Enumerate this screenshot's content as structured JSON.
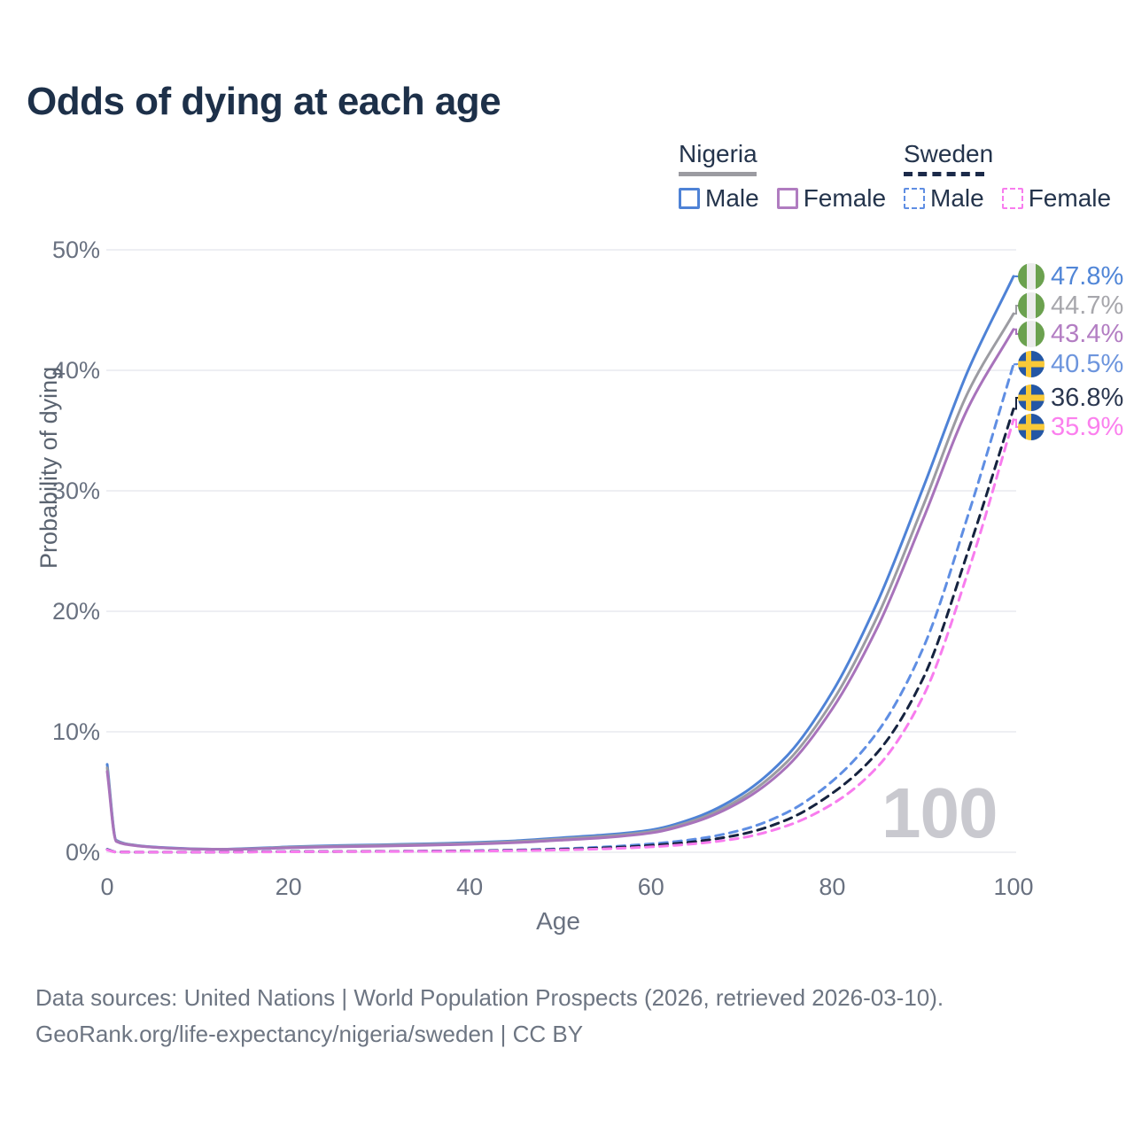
{
  "title": "Odds of dying at each age",
  "watermark": "100",
  "legend": {
    "groups": [
      {
        "country": "Nigeria",
        "line_style": "solid",
        "underline_color": "#9b9ba1",
        "items": [
          {
            "label": "Male",
            "color": "#4e82d6"
          },
          {
            "label": "Female",
            "color": "#b07cc0"
          }
        ]
      },
      {
        "country": "Sweden",
        "line_style": "dashed",
        "underline_color": "#1b2a49",
        "items": [
          {
            "label": "Male",
            "color": "#5f8ee3"
          },
          {
            "label": "Female",
            "color": "#f87cee"
          }
        ]
      }
    ]
  },
  "y_axis": {
    "title": "Probability of dying"
  },
  "x_axis": {
    "title": "Age"
  },
  "end_labels": [
    {
      "value": "47.8%",
      "flag": "nigeria",
      "color": "#5186d7"
    },
    {
      "value": "44.7%",
      "flag": "nigeria",
      "color": "#a7a7ac"
    },
    {
      "value": "43.4%",
      "flag": "nigeria",
      "color": "#b37ec3"
    },
    {
      "value": "40.5%",
      "flag": "sweden",
      "color": "#6d95dd"
    },
    {
      "value": "36.8%",
      "flag": "sweden",
      "color": "#2b3750"
    },
    {
      "value": "35.9%",
      "flag": "sweden",
      "color": "#fb80ee"
    }
  ],
  "footer": {
    "line1": "Data sources: United Nations | World Population Prospects (2026, retrieved 2026-03-10).",
    "line2": "GeoRank.org/life-expectancy/nigeria/sweden | CC BY"
  },
  "chart_data": {
    "type": "line",
    "title": "Odds of dying at each age",
    "xlabel": "Age",
    "ylabel": "Probability of dying",
    "xlim": [
      0,
      100
    ],
    "ylim_pct": [
      0,
      50
    ],
    "grid": "horizontal",
    "legend_position": "top-right",
    "xticks": [
      {
        "v": 0,
        "label": "0"
      },
      {
        "v": 20,
        "label": "20"
      },
      {
        "v": 40,
        "label": "40"
      },
      {
        "v": 60,
        "label": "60"
      },
      {
        "v": 80,
        "label": "80"
      },
      {
        "v": 100,
        "label": "100"
      }
    ],
    "yticks": [
      {
        "v": 0,
        "label": "0%"
      },
      {
        "v": 10,
        "label": "10%"
      },
      {
        "v": 20,
        "label": "20%"
      },
      {
        "v": 30,
        "label": "30%"
      },
      {
        "v": 40,
        "label": "40%"
      },
      {
        "v": 50,
        "label": "50%"
      }
    ],
    "series": [
      {
        "name": "Nigeria Male",
        "color": "#4e82d6",
        "dash": "solid",
        "end_label": "47.8%",
        "points": [
          [
            0,
            7.3
          ],
          [
            1,
            1.0
          ],
          [
            3,
            0.6
          ],
          [
            5,
            0.45
          ],
          [
            8,
            0.33
          ],
          [
            10,
            0.28
          ],
          [
            13,
            0.26
          ],
          [
            15,
            0.3
          ],
          [
            18,
            0.38
          ],
          [
            20,
            0.45
          ],
          [
            25,
            0.55
          ],
          [
            30,
            0.62
          ],
          [
            35,
            0.7
          ],
          [
            40,
            0.8
          ],
          [
            45,
            0.95
          ],
          [
            50,
            1.2
          ],
          [
            55,
            1.45
          ],
          [
            60,
            1.85
          ],
          [
            65,
            2.9
          ],
          [
            70,
            4.8
          ],
          [
            75,
            8.0
          ],
          [
            80,
            13.3
          ],
          [
            85,
            20.8
          ],
          [
            90,
            30.2
          ],
          [
            95,
            40.0
          ],
          [
            100,
            47.8
          ]
        ]
      },
      {
        "name": "Nigeria",
        "color": "#9c9ca2",
        "dash": "solid",
        "end_label": "44.7%",
        "points": [
          [
            0,
            7.0
          ],
          [
            1,
            0.95
          ],
          [
            3,
            0.58
          ],
          [
            5,
            0.43
          ],
          [
            8,
            0.31
          ],
          [
            10,
            0.27
          ],
          [
            13,
            0.25
          ],
          [
            15,
            0.28
          ],
          [
            18,
            0.35
          ],
          [
            20,
            0.41
          ],
          [
            25,
            0.5
          ],
          [
            30,
            0.57
          ],
          [
            35,
            0.64
          ],
          [
            40,
            0.73
          ],
          [
            45,
            0.88
          ],
          [
            50,
            1.1
          ],
          [
            55,
            1.33
          ],
          [
            60,
            1.72
          ],
          [
            65,
            2.7
          ],
          [
            70,
            4.5
          ],
          [
            75,
            7.5
          ],
          [
            80,
            12.5
          ],
          [
            85,
            19.6
          ],
          [
            90,
            28.7
          ],
          [
            95,
            38.2
          ],
          [
            100,
            44.7
          ]
        ]
      },
      {
        "name": "Nigeria Female",
        "color": "#a873bb",
        "dash": "solid",
        "end_label": "43.4%",
        "points": [
          [
            0,
            6.7
          ],
          [
            1,
            0.9
          ],
          [
            3,
            0.56
          ],
          [
            5,
            0.42
          ],
          [
            8,
            0.3
          ],
          [
            10,
            0.26
          ],
          [
            13,
            0.24
          ],
          [
            15,
            0.26
          ],
          [
            18,
            0.32
          ],
          [
            20,
            0.37
          ],
          [
            25,
            0.45
          ],
          [
            30,
            0.51
          ],
          [
            35,
            0.58
          ],
          [
            40,
            0.67
          ],
          [
            45,
            0.8
          ],
          [
            50,
            1.0
          ],
          [
            55,
            1.22
          ],
          [
            60,
            1.6
          ],
          [
            65,
            2.55
          ],
          [
            70,
            4.25
          ],
          [
            75,
            7.1
          ],
          [
            80,
            11.9
          ],
          [
            85,
            18.7
          ],
          [
            90,
            27.6
          ],
          [
            95,
            36.9
          ],
          [
            100,
            43.4
          ]
        ]
      },
      {
        "name": "Sweden Male",
        "color": "#5f8ee3",
        "dash": "dashed",
        "end_label": "40.5%",
        "points": [
          [
            0,
            0.25
          ],
          [
            1,
            0.03
          ],
          [
            5,
            0.01
          ],
          [
            10,
            0.01
          ],
          [
            15,
            0.04
          ],
          [
            20,
            0.06
          ],
          [
            25,
            0.07
          ],
          [
            30,
            0.08
          ],
          [
            35,
            0.1
          ],
          [
            40,
            0.13
          ],
          [
            45,
            0.19
          ],
          [
            50,
            0.29
          ],
          [
            55,
            0.45
          ],
          [
            60,
            0.7
          ],
          [
            65,
            1.1
          ],
          [
            70,
            1.85
          ],
          [
            75,
            3.3
          ],
          [
            80,
            5.9
          ],
          [
            85,
            10.0
          ],
          [
            90,
            16.9
          ],
          [
            95,
            28.0
          ],
          [
            100,
            40.5
          ]
        ]
      },
      {
        "name": "Sweden",
        "color": "#16233f",
        "dash": "dashed",
        "end_label": "36.8%",
        "points": [
          [
            0,
            0.22
          ],
          [
            1,
            0.02
          ],
          [
            5,
            0.01
          ],
          [
            10,
            0.01
          ],
          [
            15,
            0.03
          ],
          [
            20,
            0.05
          ],
          [
            25,
            0.06
          ],
          [
            30,
            0.07
          ],
          [
            35,
            0.09
          ],
          [
            40,
            0.11
          ],
          [
            45,
            0.16
          ],
          [
            50,
            0.24
          ],
          [
            55,
            0.37
          ],
          [
            60,
            0.57
          ],
          [
            65,
            0.9
          ],
          [
            70,
            1.5
          ],
          [
            75,
            2.7
          ],
          [
            80,
            4.9
          ],
          [
            85,
            8.3
          ],
          [
            90,
            14.4
          ],
          [
            95,
            25.0
          ],
          [
            100,
            36.8
          ]
        ]
      },
      {
        "name": "Sweden Female",
        "color": "#f87cee",
        "dash": "dashed",
        "end_label": "35.9%",
        "points": [
          [
            0,
            0.2
          ],
          [
            1,
            0.02
          ],
          [
            5,
            0.01
          ],
          [
            10,
            0.01
          ],
          [
            15,
            0.02
          ],
          [
            20,
            0.04
          ],
          [
            25,
            0.05
          ],
          [
            30,
            0.06
          ],
          [
            35,
            0.07
          ],
          [
            40,
            0.09
          ],
          [
            45,
            0.13
          ],
          [
            50,
            0.19
          ],
          [
            55,
            0.29
          ],
          [
            60,
            0.45
          ],
          [
            65,
            0.72
          ],
          [
            70,
            1.2
          ],
          [
            75,
            2.2
          ],
          [
            80,
            4.0
          ],
          [
            85,
            7.1
          ],
          [
            90,
            12.9
          ],
          [
            95,
            23.3
          ],
          [
            100,
            35.9
          ]
        ]
      }
    ]
  }
}
